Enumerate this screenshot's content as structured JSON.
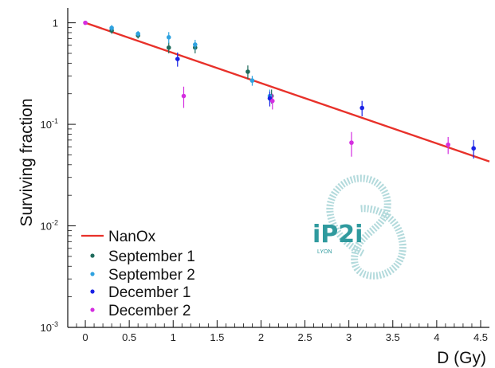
{
  "chart_data": {
    "type": "scatter",
    "xlabel": "D (Gy)",
    "ylabel": "Surviving fraction",
    "xlim": [
      -0.2,
      4.6
    ],
    "ylim": [
      0.001,
      1.4
    ],
    "yscale": "log",
    "grid": false,
    "legend_position": "bottom-left",
    "x_ticks": [
      "0",
      "0.5",
      "1",
      "1.5",
      "2",
      "2.5",
      "3",
      "3.5",
      "4",
      "4.5"
    ],
    "y_ticks": [
      {
        "base": "10",
        "exp": "-3"
      },
      {
        "base": "10",
        "exp": "-2"
      },
      {
        "base": "10",
        "exp": "-1"
      },
      {
        "base": "1",
        "exp": ""
      }
    ],
    "model": {
      "name": "NanOx",
      "color": "#e8312a",
      "x": [
        0,
        4.6
      ],
      "y": [
        1.0,
        0.043
      ]
    },
    "series": [
      {
        "name": "September 1",
        "color": "#1f6b5c",
        "points": [
          {
            "x": 0.3,
            "y": 0.84,
            "err": 0.06
          },
          {
            "x": 0.6,
            "y": 0.75,
            "err": 0.05
          },
          {
            "x": 0.95,
            "y": 0.57,
            "err": 0.07
          },
          {
            "x": 1.25,
            "y": 0.57,
            "err": 0.07
          },
          {
            "x": 1.85,
            "y": 0.33,
            "err": 0.05
          },
          {
            "x": 2.12,
            "y": 0.19,
            "err": 0.03
          }
        ]
      },
      {
        "name": "September 2",
        "color": "#2fa2e0",
        "points": [
          {
            "x": 0.3,
            "y": 0.89,
            "err": 0.06
          },
          {
            "x": 0.6,
            "y": 0.78,
            "err": 0.05
          },
          {
            "x": 0.95,
            "y": 0.72,
            "err": 0.09
          },
          {
            "x": 1.25,
            "y": 0.61,
            "err": 0.07
          },
          {
            "x": 1.9,
            "y": 0.27,
            "err": 0.03
          },
          {
            "x": 2.1,
            "y": 0.19,
            "err": 0.03
          }
        ]
      },
      {
        "name": "December 1",
        "color": "#1a22e6",
        "points": [
          {
            "x": 1.05,
            "y": 0.44,
            "err": 0.07
          },
          {
            "x": 2.1,
            "y": 0.18,
            "err": 0.03
          },
          {
            "x": 3.15,
            "y": 0.145,
            "err": 0.025
          },
          {
            "x": 4.42,
            "y": 0.058,
            "err": 0.012
          }
        ]
      },
      {
        "name": "December 2",
        "color": "#d42ee0",
        "points": [
          {
            "x": 0.0,
            "y": 1.0,
            "err": 0.02
          },
          {
            "x": 1.12,
            "y": 0.19,
            "err": 0.045
          },
          {
            "x": 2.13,
            "y": 0.17,
            "err": 0.03
          },
          {
            "x": 3.03,
            "y": 0.066,
            "err": 0.018
          },
          {
            "x": 4.13,
            "y": 0.063,
            "err": 0.012
          }
        ]
      }
    ]
  },
  "logo": {
    "text": "iP2i",
    "caption": "LYON",
    "color": "#2f9a9e"
  }
}
